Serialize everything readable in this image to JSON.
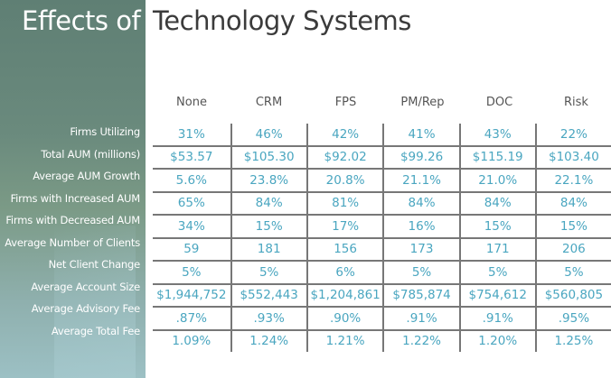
{
  "title": {
    "part1": "Effects of",
    "part2": "Technology Systems"
  },
  "columns": [
    "None",
    "CRM",
    "FPS",
    "PM/Rep",
    "DOC",
    "Risk"
  ],
  "rows": [
    {
      "label": "Firms Utilizing",
      "values": [
        "31%",
        "46%",
        "42%",
        "41%",
        "43%",
        "22%"
      ]
    },
    {
      "label": "Total AUM (millions)",
      "values": [
        "$53.57",
        "$105.30",
        "$92.02",
        "$99.26",
        "$115.19",
        "$103.40"
      ]
    },
    {
      "label": "Average AUM Growth",
      "values": [
        "5.6%",
        "23.8%",
        "20.8%",
        "21.1%",
        "21.0%",
        "22.1%"
      ]
    },
    {
      "label": "Firms with Increased AUM",
      "values": [
        "65%",
        "84%",
        "81%",
        "84%",
        "84%",
        "84%"
      ]
    },
    {
      "label": "Firms with Decreased AUM",
      "values": [
        "34%",
        "15%",
        "17%",
        "16%",
        "15%",
        "15%"
      ]
    },
    {
      "label": "Average Number of Clients",
      "values": [
        "59",
        "181",
        "156",
        "173",
        "171",
        "206"
      ]
    },
    {
      "label": "Net Client Change",
      "values": [
        "5%",
        "5%",
        "6%",
        "5%",
        "5%",
        "5%"
      ]
    },
    {
      "label": "Average Account Size",
      "values": [
        "$1,944,752",
        "$552,443",
        "$1,204,861",
        "$785,874",
        "$754,612",
        "$560,805"
      ]
    },
    {
      "label": "Average Advisory Fee",
      "values": [
        ".87%",
        ".93%",
        ".90%",
        ".91%",
        ".91%",
        ".95%"
      ]
    },
    {
      "label": "Average Total Fee",
      "values": [
        "1.09%",
        "1.24%",
        "1.21%",
        "1.22%",
        "1.20%",
        "1.25%"
      ]
    }
  ],
  "colors": {
    "value_text": "#4aa6c0",
    "title_dark": "#3b3b3b",
    "grid": "#777777"
  }
}
